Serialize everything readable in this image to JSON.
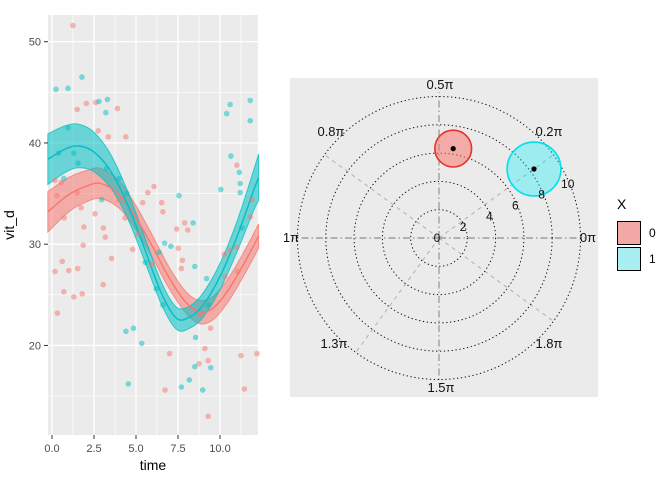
{
  "legend": {
    "title": "X",
    "items": [
      {
        "label": "0",
        "fill": "#F2A8A5",
        "border": "#000000"
      },
      {
        "label": "1",
        "fill": "#A9EFF2",
        "border": "#000000"
      }
    ]
  },
  "colors": {
    "group0": "#F8766D",
    "group1": "#00BFC4",
    "panel_bg": "#EBEBEB",
    "grid": "#FFFFFF",
    "tick_text": "#4D4D4D",
    "axis_title": "#000000",
    "polar_ring": "#111111",
    "polar_axis_line": "#777777",
    "polar_diag_line": "#AAAAAA",
    "bubble0_stroke": "#E8322E",
    "bubble0_fill": "rgba(248,118,109,0.55)",
    "bubble1_stroke": "#00E0EC",
    "bubble1_fill": "rgba(0,240,248,0.33)",
    "center_dot": "#000000"
  },
  "chart_data": [
    {
      "type": "scatter",
      "title": "",
      "xlabel": "time",
      "ylabel": "vit_d",
      "xlim": [
        -0.25,
        12.3
      ],
      "ylim": [
        11.2,
        52.6
      ],
      "x_ticks": {
        "values": [
          0,
          2.5,
          5,
          7.5,
          10
        ],
        "labels": [
          "0.0",
          "2.5",
          "5.0",
          "7.5",
          "10.0"
        ]
      },
      "x_minor": [
        1.25,
        3.75,
        6.25,
        8.75,
        11.25
      ],
      "y_ticks": {
        "values": [
          20,
          30,
          40,
          50
        ],
        "labels": [
          "20",
          "30",
          "40",
          "50"
        ]
      },
      "y_minor": [
        15,
        25,
        35,
        45
      ],
      "grid": true,
      "series": [
        {
          "name": "0",
          "color": "#F8766D",
          "points": [
            [
              1.25,
              51.6
            ],
            [
              1.5,
              43.3
            ],
            [
              2.05,
              43.9
            ],
            [
              2.6,
              44.0
            ],
            [
              3.9,
              43.4
            ],
            [
              2.75,
              41.2
            ],
            [
              3.35,
              40.6
            ],
            [
              4.4,
              40.6
            ],
            [
              0.18,
              36.3
            ],
            [
              0.54,
              36.1
            ],
            [
              0.3,
              34.8
            ],
            [
              1.5,
              35.1
            ],
            [
              0.73,
              32.6
            ],
            [
              1.73,
              33.6
            ],
            [
              2.56,
              33.0
            ],
            [
              1.9,
              31.7
            ],
            [
              3.06,
              31.6
            ],
            [
              4.0,
              34.4
            ],
            [
              4.35,
              32.6
            ],
            [
              5.4,
              34.1
            ],
            [
              5.7,
              35.1
            ],
            [
              6.07,
              35.7
            ],
            [
              6.53,
              34.1
            ],
            [
              6.6,
              33.2
            ],
            [
              11.0,
              37.8
            ],
            [
              11.9,
              34.4
            ],
            [
              11.8,
              32.7
            ],
            [
              7.9,
              32.1
            ],
            [
              3.17,
              30.7
            ],
            [
              1.86,
              29.9
            ],
            [
              0.61,
              28.3
            ],
            [
              3.55,
              28.6
            ],
            [
              0.18,
              27.3
            ],
            [
              1.0,
              27.4
            ],
            [
              1.53,
              27.6
            ],
            [
              3.05,
              26.0
            ],
            [
              0.7,
              25.3
            ],
            [
              1.8,
              25.1
            ],
            [
              1.3,
              24.8
            ],
            [
              0.32,
              23.2
            ],
            [
              7.42,
              31.5
            ],
            [
              8.08,
              31.4
            ],
            [
              7.52,
              29.6
            ],
            [
              10.6,
              29.4
            ],
            [
              10.26,
              29.0
            ],
            [
              11.0,
              29.7
            ],
            [
              7.76,
              28.4
            ],
            [
              7.7,
              27.6
            ],
            [
              11.05,
              27.3
            ],
            [
              10.3,
              26.8
            ],
            [
              8.8,
              23.1
            ],
            [
              9.44,
              21.7
            ],
            [
              7.0,
              19.2
            ],
            [
              9.1,
              19.7
            ],
            [
              9.3,
              18.5
            ],
            [
              8.75,
              18.2
            ],
            [
              12.2,
              19.2
            ],
            [
              11.25,
              19.0
            ],
            [
              11.45,
              15.7
            ],
            [
              6.73,
              15.6
            ],
            [
              9.3,
              13.0
            ],
            [
              5.1,
              31.0
            ],
            [
              5.9,
              28.0
            ],
            [
              4.8,
              29.5
            ]
          ],
          "smooth": {
            "t": [
              -0.25,
              1,
              2,
              2.9,
              4,
              5,
              6,
              7,
              8,
              8.8,
              9.6,
              10.5,
              11.4,
              12.3
            ],
            "mean": [
              33.2,
              34.9,
              35.7,
              36.0,
              34.9,
              32.6,
              29.7,
              26.6,
              24.2,
              23.3,
              23.7,
              25.5,
              28.0,
              30.8
            ],
            "halfwidth": [
              2.0,
              1.7,
              1.55,
              1.5,
              1.35,
              1.2,
              1.1,
              1.05,
              1.05,
              1.15,
              1.15,
              1.15,
              1.15,
              1.2
            ]
          }
        },
        {
          "name": "1",
          "color": "#00BFC4",
          "points": [
            [
              1.78,
              46.5
            ],
            [
              0.24,
              45.3
            ],
            [
              0.95,
              45.4
            ],
            [
              2.8,
              44.1
            ],
            [
              3.3,
              44.3
            ],
            [
              3.2,
              43.0
            ],
            [
              0.95,
              41.5
            ],
            [
              0.4,
              39.0
            ],
            [
              1.3,
              39.0
            ],
            [
              1.55,
              38.0
            ],
            [
              0.7,
              36.5
            ],
            [
              3.25,
              37.5
            ],
            [
              4.0,
              36.5
            ],
            [
              4.45,
              35.0
            ],
            [
              2.95,
              34.4
            ],
            [
              10.6,
              43.8
            ],
            [
              11.8,
              44.2
            ],
            [
              10.4,
              42.9
            ],
            [
              11.8,
              42.2
            ],
            [
              10.65,
              38.7
            ],
            [
              11.15,
              37.1
            ],
            [
              11.2,
              36.0
            ],
            [
              10.05,
              35.4
            ],
            [
              11.2,
              35.1
            ],
            [
              7.56,
              34.8
            ],
            [
              8.4,
              32.1
            ],
            [
              4.4,
              21.4
            ],
            [
              5.34,
              20.2
            ],
            [
              4.54,
              16.2
            ],
            [
              6.7,
              30.1
            ],
            [
              7.08,
              29.8
            ],
            [
              11.3,
              31.6
            ],
            [
              8.5,
              27.8
            ],
            [
              9.2,
              26.6
            ],
            [
              9.3,
              24.0
            ],
            [
              8.55,
              20.8
            ],
            [
              8.5,
              17.9
            ],
            [
              9.45,
              17.8
            ],
            [
              8.17,
              16.6
            ],
            [
              8.97,
              15.6
            ],
            [
              6.37,
              29.2
            ],
            [
              7.7,
              15.9
            ],
            [
              5.55,
              28.2
            ],
            [
              6.2,
              25.6
            ],
            [
              6.6,
              24.0
            ],
            [
              4.85,
              21.7
            ]
          ],
          "smooth": {
            "t": [
              -0.25,
              0.8,
              1.6,
              2.5,
              3.5,
              4.5,
              5.5,
              6.5,
              7.4,
              8.2,
              9,
              10,
              11,
              12,
              12.3
            ],
            "mean": [
              38.4,
              39.4,
              39.7,
              39.1,
              37.2,
              33.9,
              29.6,
              25.2,
              22.7,
              22.8,
              24.0,
              26.8,
              30.7,
              35.3,
              36.6
            ],
            "halfwidth": [
              2.5,
              2.3,
              2.15,
              1.95,
              1.65,
              1.35,
              1.2,
              1.1,
              1.1,
              1.1,
              1.2,
              1.3,
              1.5,
              2.0,
              2.3
            ]
          }
        }
      ]
    },
    {
      "type": "polar_scatter",
      "title": "",
      "r_ticks": {
        "values": [
          0,
          2,
          4,
          6,
          8,
          10
        ],
        "labels": [
          "0",
          "2",
          "4",
          "6",
          "8",
          "10"
        ]
      },
      "r_max": 10,
      "theta_labels": [
        {
          "label": "0π",
          "angle_pi": 0
        },
        {
          "label": "0.2π",
          "angle_pi": 0.2
        },
        {
          "label": "0.5π",
          "angle_pi": 0.5
        },
        {
          "label": "0.8π",
          "angle_pi": 0.8
        },
        {
          "label": "1π",
          "angle_pi": 1
        },
        {
          "label": "1.3π",
          "angle_pi": 1.3
        },
        {
          "label": "1.5π",
          "angle_pi": 1.5
        },
        {
          "label": "1.8π",
          "angle_pi": 1.8
        }
      ],
      "spokes_pi": [
        0,
        0.2,
        0.5,
        0.8,
        1,
        1.3,
        1.5,
        1.8
      ],
      "groups": [
        {
          "name": "0",
          "theta_pi": 0.45,
          "r": 6.4,
          "spread_radius": 1.3
        },
        {
          "name": "1",
          "theta_pi": 0.2,
          "r": 8.3,
          "spread_radius": 1.9
        }
      ]
    }
  ]
}
